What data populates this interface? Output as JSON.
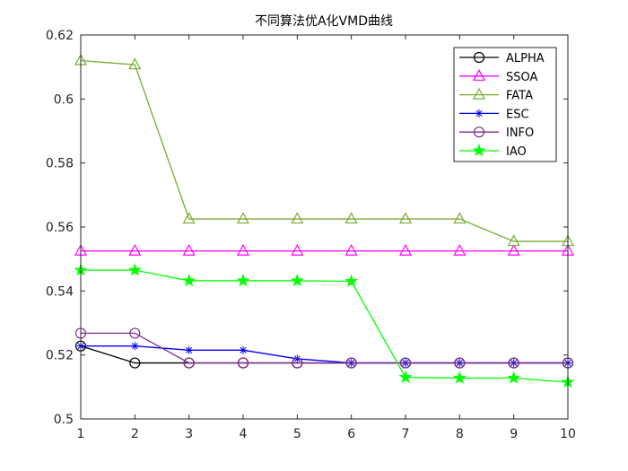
{
  "chart_data": {
    "type": "line",
    "title": "不同算法优A化VMD曲线",
    "xlabel": "",
    "ylabel": "",
    "x": [
      1,
      2,
      3,
      4,
      5,
      6,
      7,
      8,
      9,
      10
    ],
    "xlim": [
      1,
      10
    ],
    "ylim": [
      0.5,
      0.62
    ],
    "xticks": [
      "1",
      "2",
      "3",
      "4",
      "5",
      "6",
      "7",
      "8",
      "9",
      "10"
    ],
    "yticks": [
      "0.5",
      "0.52",
      "0.54",
      "0.56",
      "0.58",
      "0.6",
      "0.62"
    ],
    "grid": false,
    "legend_position": "top-right",
    "series": [
      {
        "name": "ALPHA",
        "color": "#000000",
        "marker": "circle",
        "values": [
          0.5228,
          0.5175,
          0.5175,
          0.5175,
          0.5175,
          0.5175,
          0.5175,
          0.5175,
          0.5175,
          0.5175
        ]
      },
      {
        "name": "SSOA",
        "color": "#ff00ff",
        "marker": "triangle",
        "values": [
          0.5525,
          0.5525,
          0.5525,
          0.5525,
          0.5525,
          0.5525,
          0.5525,
          0.5525,
          0.5525,
          0.5525
        ]
      },
      {
        "name": "FATA",
        "color": "#77ac30",
        "marker": "triangle",
        "values": [
          0.612,
          0.6107,
          0.5625,
          0.5625,
          0.5625,
          0.5625,
          0.5625,
          0.5625,
          0.5555,
          0.5555
        ]
      },
      {
        "name": "ESC",
        "color": "#0000ff",
        "marker": "asterisk",
        "values": [
          0.5228,
          0.5228,
          0.5215,
          0.5215,
          0.5188,
          0.5175,
          0.5175,
          0.5175,
          0.5175,
          0.5175
        ]
      },
      {
        "name": "INFO",
        "color": "#7e2f8e",
        "marker": "circle",
        "values": [
          0.5268,
          0.5268,
          0.5175,
          0.5175,
          0.5175,
          0.5175,
          0.5175,
          0.5175,
          0.5175,
          0.5175
        ]
      },
      {
        "name": "IAO",
        "color": "#00ff00",
        "marker": "pentagram",
        "values": [
          0.5465,
          0.5465,
          0.5432,
          0.5432,
          0.5432,
          0.543,
          0.513,
          0.5128,
          0.5128,
          0.5115
        ]
      }
    ]
  }
}
